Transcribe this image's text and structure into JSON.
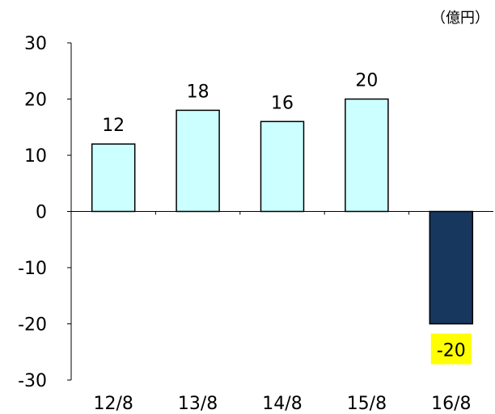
{
  "chart_data": {
    "type": "bar",
    "unit_label": "（億円）",
    "categories": [
      "12/8",
      "13/8",
      "14/8",
      "15/8",
      "16/8"
    ],
    "values": [
      12,
      18,
      16,
      20,
      -20
    ],
    "data_labels": [
      "12",
      "18",
      "16",
      "20",
      "-20"
    ],
    "ylim": [
      -30,
      30
    ],
    "yticks": [
      "30",
      "20",
      "10",
      "0",
      "-10",
      "-20",
      "-30"
    ],
    "ytick_values": [
      30,
      20,
      10,
      0,
      -10,
      -20,
      -30
    ],
    "grid": false,
    "colors": {
      "positive_bar": "#ccffff",
      "negative_bar": "#17375e",
      "negative_label_bg": "#ffff00",
      "axis": "#000000"
    }
  }
}
